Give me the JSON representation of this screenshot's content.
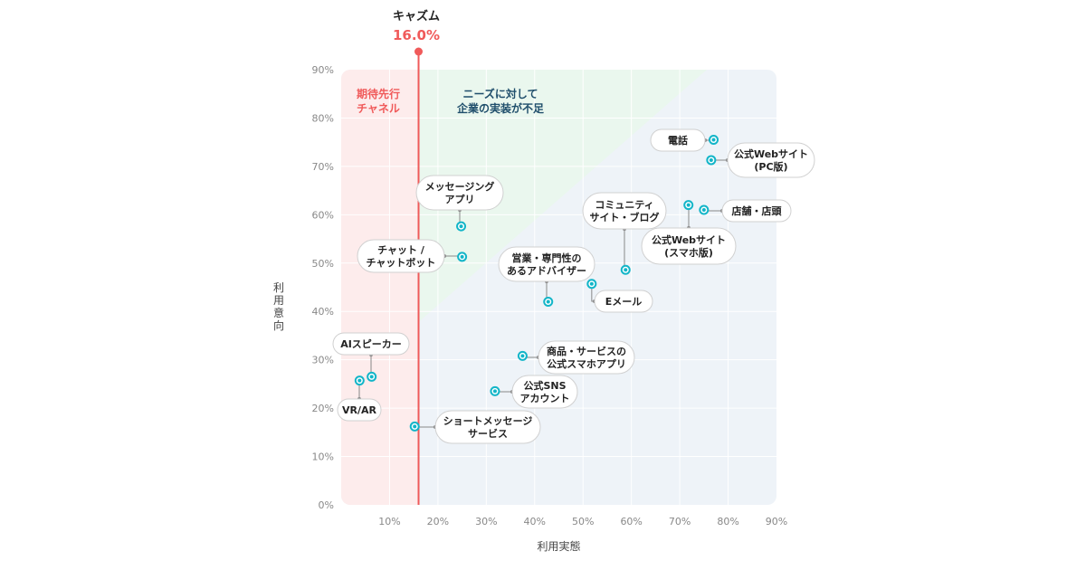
{
  "chart_data": {
    "type": "scatter",
    "xlabel": "利用実態",
    "ylabel": "利用意向",
    "xlim": [
      0,
      90
    ],
    "ylim": [
      0,
      90
    ],
    "x_ticks": [
      "10%",
      "20%",
      "30%",
      "40%",
      "50%",
      "60%",
      "70%",
      "80%",
      "90%"
    ],
    "y_ticks": [
      "0%",
      "10%",
      "20%",
      "30%",
      "40%",
      "50%",
      "60%",
      "70%",
      "80%",
      "90%"
    ],
    "grid": true,
    "chasm": {
      "title": "キャズム",
      "value_label": "16.0%",
      "x": 16.0
    },
    "zones": [
      {
        "lines": [
          "期待先行",
          "チャネル"
        ],
        "color": "#f05a5a"
      },
      {
        "lines": [
          "ニーズに対して",
          "企業の実装が不足"
        ],
        "color": "#1f4e6b"
      }
    ],
    "points": [
      {
        "lines": [
          "電話"
        ],
        "x": 77,
        "y": 75.5
      },
      {
        "lines": [
          "公式Webサイト",
          "(PC版)"
        ],
        "x": 76.5,
        "y": 71.3
      },
      {
        "lines": [
          "店舗・店頭"
        ],
        "x": 75,
        "y": 61
      },
      {
        "lines": [
          "公式Webサイト",
          "(スマホ版)"
        ],
        "x": 71.8,
        "y": 62
      },
      {
        "lines": [
          "コミュニティ",
          "サイト・ブログ"
        ],
        "x": 58.8,
        "y": 48.6
      },
      {
        "lines": [
          "メッセージング",
          "アプリ"
        ],
        "x": 24.8,
        "y": 57.6
      },
      {
        "lines": [
          "チャット /",
          "チャットボット"
        ],
        "x": 25,
        "y": 51.3
      },
      {
        "lines": [
          "営業・専門性の",
          "あるアドバイザー"
        ],
        "x": 42.8,
        "y": 42
      },
      {
        "lines": [
          "Eメール"
        ],
        "x": 51.8,
        "y": 45.7
      },
      {
        "lines": [
          "AIスピーカー"
        ],
        "x": 6.3,
        "y": 26.5
      },
      {
        "lines": [
          "VR/AR"
        ],
        "x": 3.8,
        "y": 25.7
      },
      {
        "lines": [
          "商品・サービスの",
          "公式スマホアプリ"
        ],
        "x": 37.5,
        "y": 30.8
      },
      {
        "lines": [
          "公式SNS",
          "アカウント"
        ],
        "x": 31.8,
        "y": 23.5
      },
      {
        "lines": [
          "ショートメッセージ",
          "サービス"
        ],
        "x": 15.2,
        "y": 16.2
      }
    ],
    "colors": {
      "chasm": "#f05a5a",
      "point": "#12b5c8",
      "left_zone": "#fdecec",
      "upper_zone": "#eaf7ee",
      "lower_zone": "#eef3f8",
      "zone_dark": "#1f4e6b"
    }
  }
}
